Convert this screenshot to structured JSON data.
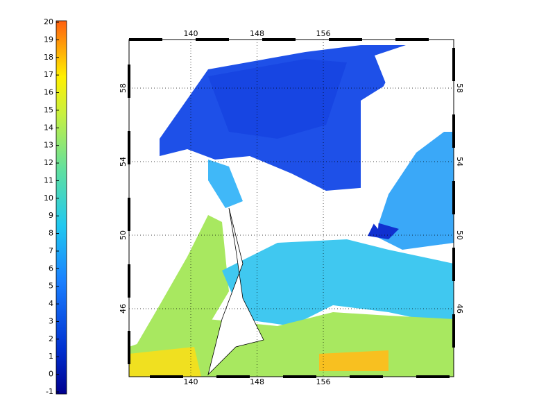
{
  "map": {
    "colorbar": {
      "ticks": [
        -1,
        0,
        1,
        2,
        3,
        4,
        5,
        6,
        7,
        8,
        9,
        10,
        11,
        12,
        13,
        14,
        15,
        16,
        17,
        18,
        19,
        20
      ]
    },
    "lon_ticks": [
      140,
      148,
      156
    ],
    "lat_ticks": [
      46,
      50,
      54,
      58
    ]
  }
}
